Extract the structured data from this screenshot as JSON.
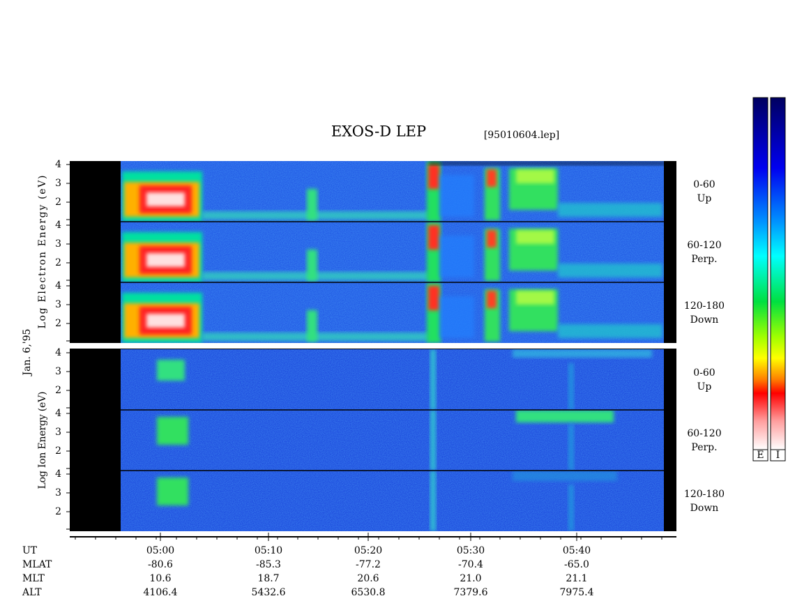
{
  "header": {
    "title": "EXOS-D LEP",
    "file": "[95010604.lep]"
  },
  "date": "Jan. 6,'95",
  "electron": {
    "axis_label": "Log Electron Energy (eV)",
    "panels": [
      {
        "ticks": [
          "4",
          "3",
          "2"
        ],
        "pitch": [
          "0-60",
          "Up"
        ]
      },
      {
        "ticks": [
          "4",
          "3",
          "2"
        ],
        "pitch": [
          "60-120",
          "Perp."
        ]
      },
      {
        "ticks": [
          "4",
          "3",
          "2"
        ],
        "pitch": [
          "120-180",
          "Down"
        ]
      }
    ]
  },
  "ion": {
    "axis_label": "Log Ion Energy (eV)",
    "panels": [
      {
        "ticks": [
          "4",
          "3",
          "2"
        ],
        "pitch": [
          "0-60",
          "Up"
        ]
      },
      {
        "ticks": [
          "4",
          "3",
          "2"
        ],
        "pitch": [
          "60-120",
          "Perp."
        ]
      },
      {
        "ticks": [
          "4",
          "3",
          "2"
        ],
        "pitch": [
          "120-180",
          "Down"
        ]
      }
    ]
  },
  "ephemeris": [
    {
      "label": "UT",
      "values": [
        "05:00",
        "05:10",
        "05:20",
        "05:30",
        "05:40"
      ]
    },
    {
      "label": "MLAT",
      "values": [
        "-80.6",
        "-85.3",
        "-77.2",
        "-70.4",
        "-65.0"
      ]
    },
    {
      "label": "MLT",
      "values": [
        "10.6",
        "18.7",
        "20.6",
        "21.0",
        "21.1"
      ]
    },
    {
      "label": "ALT",
      "values": [
        "4106.4",
        "5432.6",
        "6530.8",
        "7379.6",
        "7975.4"
      ]
    }
  ],
  "colorbars": [
    "E",
    "I"
  ]
}
